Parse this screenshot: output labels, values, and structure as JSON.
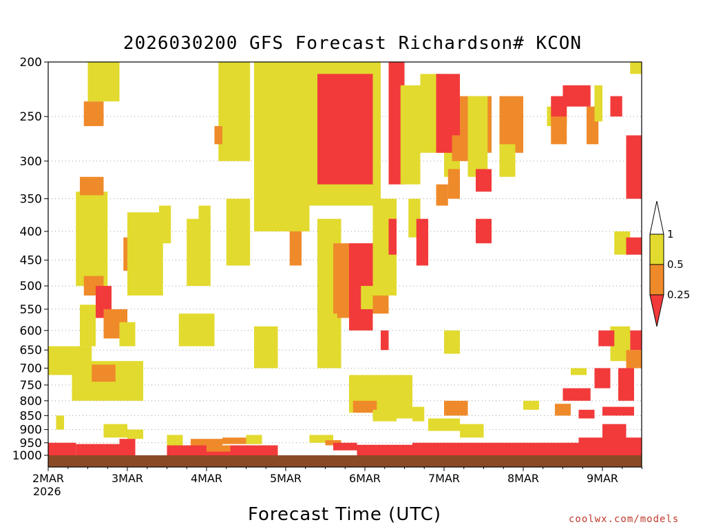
{
  "chart_data": {
    "type": "heatmap",
    "title": "2026030200 GFS Forecast Richardson# KCON",
    "xlabel": "Forecast Time (UTC)",
    "ylabel": "",
    "x_ticks": [
      "2MAR",
      "3MAR",
      "4MAR",
      "5MAR",
      "6MAR",
      "7MAR",
      "8MAR",
      "9MAR"
    ],
    "x_year": "2026",
    "y_ticks": [
      200,
      250,
      300,
      350,
      400,
      450,
      500,
      550,
      600,
      650,
      700,
      750,
      800,
      850,
      900,
      950,
      1000
    ],
    "y_scale": "log-pressure",
    "ylim": [
      1000,
      200
    ],
    "xlim_days": [
      0,
      7.5
    ],
    "grid": "dotted horizontal",
    "colorbar": {
      "bins": [
        {
          "range": "<0.25",
          "color": "#f23a3a"
        },
        {
          "range": "0.25-0.5",
          "color": "#ef8a2a"
        },
        {
          "range": "0.5-1",
          "color": "#e2da2e"
        },
        {
          "range": ">1",
          "color": "#ffffff"
        }
      ],
      "labels": [
        "1",
        "0.5",
        "0.25"
      ]
    },
    "colors": {
      "red": "#f23a3a",
      "orange": "#ef8a2a",
      "yellow": "#e2da2e",
      "ground": "#8b4a26"
    },
    "patches": [
      {
        "x": [
          0.0,
          0.35
        ],
        "p": [
          950,
          1000
        ],
        "cls": "red"
      },
      {
        "x": [
          0.35,
          1.1
        ],
        "p": [
          955,
          1000
        ],
        "cls": "red"
      },
      {
        "x": [
          1.5,
          2.9
        ],
        "p": [
          960,
          1000
        ],
        "cls": "red"
      },
      {
        "x": [
          1.8,
          2.2
        ],
        "p": [
          935,
          960
        ],
        "cls": "orange"
      },
      {
        "x": [
          2.2,
          2.7
        ],
        "p": [
          930,
          955
        ],
        "cls": "orange"
      },
      {
        "x": [
          3.9,
          4.6
        ],
        "p": [
          958,
          1000
        ],
        "cls": "red"
      },
      {
        "x": [
          4.6,
          7.5
        ],
        "p": [
          950,
          1000
        ],
        "cls": "red"
      },
      {
        "x": [
          6.7,
          7.5
        ],
        "p": [
          930,
          955
        ],
        "cls": "red"
      },
      {
        "x": [
          0.0,
          0.55
        ],
        "p": [
          640,
          720
        ],
        "cls": "yellow"
      },
      {
        "x": [
          0.3,
          1.2
        ],
        "p": [
          680,
          800
        ],
        "cls": "yellow"
      },
      {
        "x": [
          0.55,
          0.85
        ],
        "p": [
          690,
          740
        ],
        "cls": "orange"
      },
      {
        "x": [
          0.4,
          0.6
        ],
        "p": [
          540,
          640
        ],
        "cls": "yellow"
      },
      {
        "x": [
          0.35,
          0.75
        ],
        "p": [
          340,
          500
        ],
        "cls": "yellow"
      },
      {
        "x": [
          0.45,
          0.7
        ],
        "p": [
          480,
          520
        ],
        "cls": "orange"
      },
      {
        "x": [
          0.6,
          0.8
        ],
        "p": [
          500,
          570
        ],
        "cls": "red"
      },
      {
        "x": [
          0.7,
          1.0
        ],
        "p": [
          550,
          620
        ],
        "cls": "orange"
      },
      {
        "x": [
          0.9,
          1.1
        ],
        "p": [
          580,
          640
        ],
        "cls": "yellow"
      },
      {
        "x": [
          0.4,
          0.7
        ],
        "p": [
          320,
          345
        ],
        "cls": "orange"
      },
      {
        "x": [
          0.45,
          0.7
        ],
        "p": [
          235,
          260
        ],
        "cls": "orange"
      },
      {
        "x": [
          0.5,
          0.9
        ],
        "p": [
          200,
          235
        ],
        "cls": "yellow"
      },
      {
        "x": [
          0.95,
          1.25
        ],
        "p": [
          410,
          470
        ],
        "cls": "orange"
      },
      {
        "x": [
          1.05,
          1.3
        ],
        "p": [
          460,
          510
        ],
        "cls": "orange"
      },
      {
        "x": [
          1.0,
          1.45
        ],
        "p": [
          370,
          520
        ],
        "cls": "yellow"
      },
      {
        "x": [
          1.65,
          2.1
        ],
        "p": [
          560,
          640
        ],
        "cls": "yellow"
      },
      {
        "x": [
          2.15,
          2.55
        ],
        "p": [
          170,
          300
        ],
        "cls": "yellow"
      },
      {
        "x": [
          2.1,
          2.2
        ],
        "p": [
          260,
          280
        ],
        "cls": "orange"
      },
      {
        "x": [
          2.25,
          2.55
        ],
        "p": [
          350,
          460
        ],
        "cls": "yellow"
      },
      {
        "x": [
          2.6,
          2.9
        ],
        "p": [
          590,
          700
        ],
        "cls": "yellow"
      },
      {
        "x": [
          2.7,
          3.0
        ],
        "p": [
          200,
          240
        ],
        "cls": "yellow"
      },
      {
        "x": [
          2.75,
          3.1
        ],
        "p": [
          245,
          300
        ],
        "cls": "red"
      },
      {
        "x": [
          2.8,
          3.05
        ],
        "p": [
          255,
          290
        ],
        "cls": "red"
      },
      {
        "x": [
          2.9,
          3.2
        ],
        "p": [
          285,
          360
        ],
        "cls": "red"
      },
      {
        "x": [
          3.0,
          3.25
        ],
        "p": [
          330,
          400
        ],
        "cls": "red"
      },
      {
        "x": [
          3.05,
          3.2
        ],
        "p": [
          390,
          460
        ],
        "cls": "orange"
      },
      {
        "x": [
          2.6,
          3.3
        ],
        "p": [
          200,
          400
        ],
        "cls": "yellow"
      },
      {
        "x": [
          3.3,
          4.2
        ],
        "p": [
          200,
          360
        ],
        "cls": "yellow"
      },
      {
        "x": [
          3.4,
          4.1
        ],
        "p": [
          210,
          330
        ],
        "cls": "red"
      },
      {
        "x": [
          3.4,
          3.7
        ],
        "p": [
          380,
          700
        ],
        "cls": "yellow"
      },
      {
        "x": [
          3.6,
          4.3
        ],
        "p": [
          420,
          560
        ],
        "cls": "orange"
      },
      {
        "x": [
          3.8,
          4.1
        ],
        "p": [
          420,
          600
        ],
        "cls": "red"
      },
      {
        "x": [
          3.8,
          4.6
        ],
        "p": [
          720,
          840
        ],
        "cls": "yellow"
      },
      {
        "x": [
          3.85,
          4.15
        ],
        "p": [
          800,
          840
        ],
        "cls": "orange"
      },
      {
        "x": [
          4.4,
          4.6
        ],
        "p": [
          770,
          860
        ],
        "cls": "yellow"
      },
      {
        "x": [
          4.3,
          4.5
        ],
        "p": [
          200,
          330
        ],
        "cls": "red"
      },
      {
        "x": [
          4.45,
          4.7
        ],
        "p": [
          220,
          330
        ],
        "cls": "yellow"
      },
      {
        "x": [
          4.1,
          4.4
        ],
        "p": [
          350,
          520
        ],
        "cls": "yellow"
      },
      {
        "x": [
          4.3,
          4.4
        ],
        "p": [
          380,
          440
        ],
        "cls": "red"
      },
      {
        "x": [
          4.6,
          4.75
        ],
        "p": [
          820,
          870
        ],
        "cls": "yellow"
      },
      {
        "x": [
          5.2,
          5.6
        ],
        "p": [
          230,
          290
        ],
        "cls": "orange"
      },
      {
        "x": [
          5.7,
          6.0
        ],
        "p": [
          230,
          290
        ],
        "cls": "orange"
      },
      {
        "x": [
          5.0,
          5.2
        ],
        "p": [
          250,
          320
        ],
        "cls": "yellow"
      },
      {
        "x": [
          5.05,
          5.2
        ],
        "p": [
          310,
          350
        ],
        "cls": "orange"
      },
      {
        "x": [
          6.3,
          6.55
        ],
        "p": [
          240,
          260
        ],
        "cls": "yellow"
      },
      {
        "x": [
          6.35,
          6.55
        ],
        "p": [
          230,
          255
        ],
        "cls": "red"
      },
      {
        "x": [
          6.35,
          6.55
        ],
        "p": [
          250,
          280
        ],
        "cls": "orange"
      },
      {
        "x": [
          6.8,
          6.95
        ],
        "p": [
          240,
          280
        ],
        "cls": "orange"
      },
      {
        "x": [
          6.5,
          6.85
        ],
        "p": [
          220,
          240
        ],
        "cls": "red"
      },
      {
        "x": [
          6.9,
          7.0
        ],
        "p": [
          220,
          255
        ],
        "cls": "yellow"
      },
      {
        "x": [
          7.1,
          7.25
        ],
        "p": [
          230,
          250
        ],
        "cls": "red"
      },
      {
        "x": [
          7.35,
          7.5
        ],
        "p": [
          200,
          210
        ],
        "cls": "yellow"
      },
      {
        "x": [
          7.3,
          7.5
        ],
        "p": [
          270,
          350
        ],
        "cls": "red"
      },
      {
        "x": [
          7.35,
          7.5
        ],
        "p": [
          600,
          650
        ],
        "cls": "red"
      },
      {
        "x": [
          7.1,
          7.35
        ],
        "p": [
          590,
          680
        ],
        "cls": "yellow"
      },
      {
        "x": [
          6.95,
          7.15
        ],
        "p": [
          600,
          640
        ],
        "cls": "red"
      },
      {
        "x": [
          6.9,
          7.1
        ],
        "p": [
          700,
          760
        ],
        "cls": "red"
      },
      {
        "x": [
          6.5,
          6.85
        ],
        "p": [
          760,
          800
        ],
        "cls": "red"
      },
      {
        "x": [
          6.4,
          6.6
        ],
        "p": [
          810,
          850
        ],
        "cls": "orange"
      },
      {
        "x": [
          6.7,
          6.9
        ],
        "p": [
          830,
          860
        ],
        "cls": "red"
      },
      {
        "x": [
          7.0,
          7.4
        ],
        "p": [
          820,
          850
        ],
        "cls": "red"
      },
      {
        "x": [
          7.3,
          7.5
        ],
        "p": [
          650,
          700
        ],
        "cls": "orange"
      },
      {
        "x": [
          7.15,
          7.35
        ],
        "p": [
          400,
          440
        ],
        "cls": "yellow"
      },
      {
        "x": [
          7.3,
          7.5
        ],
        "p": [
          410,
          440
        ],
        "cls": "red"
      },
      {
        "x": [
          5.3,
          5.55
        ],
        "p": [
          230,
          320
        ],
        "cls": "yellow"
      },
      {
        "x": [
          4.7,
          5.0
        ],
        "p": [
          210,
          290
        ],
        "cls": "yellow"
      },
      {
        "x": [
          4.9,
          5.2
        ],
        "p": [
          210,
          290
        ],
        "cls": "red"
      },
      {
        "x": [
          5.4,
          5.6
        ],
        "p": [
          310,
          340
        ],
        "cls": "red"
      },
      {
        "x": [
          4.9,
          5.05
        ],
        "p": [
          330,
          360
        ],
        "cls": "orange"
      },
      {
        "x": [
          5.4,
          5.6
        ],
        "p": [
          380,
          420
        ],
        "cls": "red"
      },
      {
        "x": [
          5.0,
          5.2
        ],
        "p": [
          600,
          660
        ],
        "cls": "yellow"
      },
      {
        "x": [
          5.0,
          5.3
        ],
        "p": [
          800,
          850
        ],
        "cls": "orange"
      },
      {
        "x": [
          5.2,
          5.5
        ],
        "p": [
          880,
          930
        ],
        "cls": "yellow"
      },
      {
        "x": [
          4.8,
          5.2
        ],
        "p": [
          860,
          905
        ],
        "cls": "yellow"
      },
      {
        "x": [
          0.7,
          1.0
        ],
        "p": [
          880,
          930
        ],
        "cls": "yellow"
      },
      {
        "x": [
          1.0,
          1.2
        ],
        "p": [
          900,
          935
        ],
        "cls": "yellow"
      },
      {
        "x": [
          0.9,
          1.1
        ],
        "p": [
          935,
          970
        ],
        "cls": "red"
      },
      {
        "x": [
          3.3,
          3.6
        ],
        "p": [
          920,
          950
        ],
        "cls": "yellow"
      },
      {
        "x": [
          3.5,
          3.7
        ],
        "p": [
          940,
          960
        ],
        "cls": "orange"
      },
      {
        "x": [
          4.1,
          4.4
        ],
        "p": [
          830,
          870
        ],
        "cls": "yellow"
      },
      {
        "x": [
          4.55,
          4.7
        ],
        "p": [
          350,
          410
        ],
        "cls": "yellow"
      },
      {
        "x": [
          4.65,
          4.8
        ],
        "p": [
          380,
          460
        ],
        "cls": "red"
      },
      {
        "x": [
          3.65,
          3.8
        ],
        "p": [
          500,
          570
        ],
        "cls": "orange"
      },
      {
        "x": [
          3.95,
          4.1
        ],
        "p": [
          500,
          550
        ],
        "cls": "yellow"
      },
      {
        "x": [
          4.2,
          4.3
        ],
        "p": [
          600,
          650
        ],
        "cls": "red"
      },
      {
        "x": [
          5.7,
          5.9
        ],
        "p": [
          280,
          320
        ],
        "cls": "yellow"
      },
      {
        "x": [
          5.1,
          5.3
        ],
        "p": [
          270,
          300
        ],
        "cls": "orange"
      },
      {
        "x": [
          1.75,
          2.05
        ],
        "p": [
          380,
          500
        ],
        "cls": "yellow"
      },
      {
        "x": [
          1.9,
          2.05
        ],
        "p": [
          360,
          400
        ],
        "cls": "yellow"
      },
      {
        "x": [
          1.4,
          1.55
        ],
        "p": [
          360,
          420
        ],
        "cls": "yellow"
      },
      {
        "x": [
          1.25,
          1.4
        ],
        "p": [
          440,
          520
        ],
        "cls": "yellow"
      },
      {
        "x": [
          0.1,
          0.2
        ],
        "p": [
          850,
          900
        ],
        "cls": "yellow"
      },
      {
        "x": [
          1.5,
          1.7
        ],
        "p": [
          920,
          960
        ],
        "cls": "yellow"
      },
      {
        "x": [
          2.5,
          2.7
        ],
        "p": [
          920,
          955
        ],
        "cls": "yellow"
      },
      {
        "x": [
          2.0,
          2.3
        ],
        "p": [
          960,
          985
        ],
        "cls": "orange"
      },
      {
        "x": [
          3.6,
          3.9
        ],
        "p": [
          950,
          980
        ],
        "cls": "red"
      },
      {
        "x": [
          7.0,
          7.3
        ],
        "p": [
          880,
          940
        ],
        "cls": "red"
      },
      {
        "x": [
          7.2,
          7.4
        ],
        "p": [
          700,
          800
        ],
        "cls": "red"
      },
      {
        "x": [
          6.6,
          6.8
        ],
        "p": [
          700,
          720
        ],
        "cls": "yellow"
      },
      {
        "x": [
          6.0,
          6.2
        ],
        "p": [
          800,
          830
        ],
        "cls": "yellow"
      }
    ]
  },
  "credit": "coolwx.com/models"
}
